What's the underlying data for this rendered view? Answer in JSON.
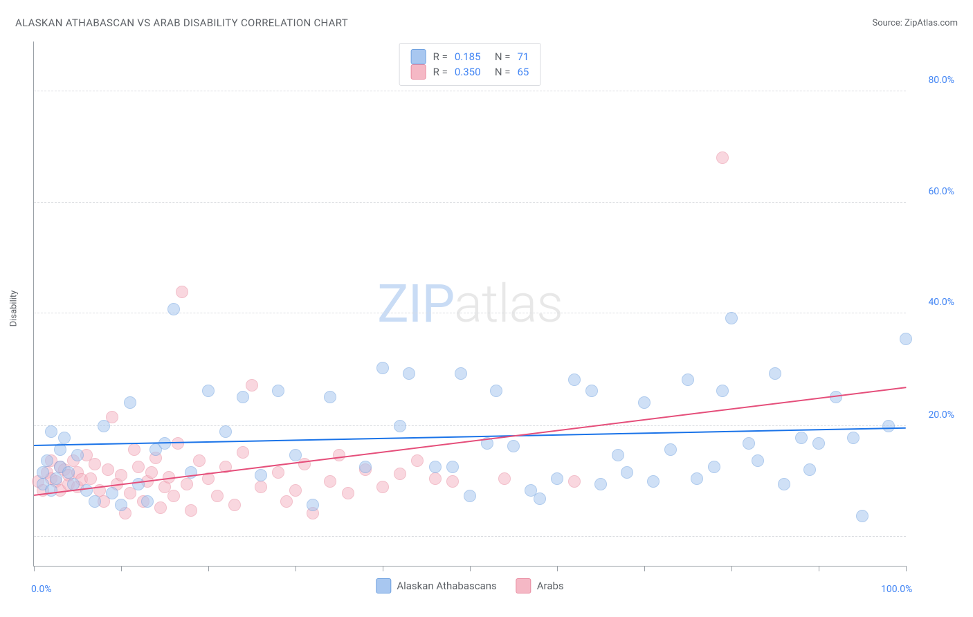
{
  "title": "ALASKAN ATHABASCAN VS ARAB DISABILITY CORRELATION CHART",
  "source_label": "Source: ZipAtlas.com",
  "y_axis_label": "Disability",
  "watermark": {
    "left": "ZIP",
    "right": "atlas"
  },
  "chart": {
    "type": "scatter",
    "xlim": [
      0,
      100
    ],
    "ylim": [
      0,
      90
    ],
    "x_tick_positions": [
      0,
      10,
      20,
      30,
      40,
      50,
      60,
      70,
      80,
      90,
      100
    ],
    "x_tick_labels": {
      "0": "0.0%",
      "100": "100.0%"
    },
    "y_grid_positions": [
      5,
      24,
      43.3,
      62.3,
      81.5
    ],
    "y_tick_labels": [
      {
        "pos": 24,
        "text": "20.0%"
      },
      {
        "pos": 43.3,
        "text": "40.0%"
      },
      {
        "pos": 62.3,
        "text": "60.0%"
      },
      {
        "pos": 81.5,
        "text": "80.0%"
      }
    ],
    "grid_color": "#dadce0",
    "axis_color": "#9aa0a6",
    "background_color": "#ffffff",
    "point_radius": 8,
    "point_opacity": 0.55,
    "series": [
      {
        "name": "Alaskan Athabascans",
        "fill_color": "#a8c7f0",
        "stroke_color": "#6fa1e0",
        "trend_color": "#1a73e8",
        "stats": {
          "r_label": "R =",
          "r_value": "0.185",
          "n_label": "N =",
          "n_value": "71"
        },
        "trend": {
          "x1": 0,
          "y1": 20.5,
          "x2": 100,
          "y2": 23.5
        },
        "points": [
          [
            1,
            16
          ],
          [
            1,
            14
          ],
          [
            1.5,
            18
          ],
          [
            2,
            23
          ],
          [
            2,
            13
          ],
          [
            2.5,
            15
          ],
          [
            3,
            20
          ],
          [
            3,
            17
          ],
          [
            3.5,
            22
          ],
          [
            4,
            16
          ],
          [
            4.5,
            14
          ],
          [
            5,
            19
          ],
          [
            6,
            13
          ],
          [
            7,
            11
          ],
          [
            8,
            24
          ],
          [
            9,
            12.5
          ],
          [
            10,
            10.5
          ],
          [
            11,
            28
          ],
          [
            12,
            14
          ],
          [
            13,
            11
          ],
          [
            14,
            20
          ],
          [
            15,
            21
          ],
          [
            16,
            44
          ],
          [
            18,
            16
          ],
          [
            20,
            30
          ],
          [
            22,
            23
          ],
          [
            24,
            29
          ],
          [
            26,
            15.5
          ],
          [
            28,
            30
          ],
          [
            30,
            19
          ],
          [
            32,
            10.5
          ],
          [
            34,
            29
          ],
          [
            38,
            17
          ],
          [
            40,
            34
          ],
          [
            42,
            24
          ],
          [
            43,
            33
          ],
          [
            46,
            17
          ],
          [
            48,
            17
          ],
          [
            49,
            33
          ],
          [
            50,
            12
          ],
          [
            52,
            21
          ],
          [
            53,
            30
          ],
          [
            55,
            20.5
          ],
          [
            57,
            13
          ],
          [
            58,
            11.5
          ],
          [
            60,
            15
          ],
          [
            62,
            32
          ],
          [
            64,
            30
          ],
          [
            65,
            14
          ],
          [
            67,
            19
          ],
          [
            68,
            16
          ],
          [
            70,
            28
          ],
          [
            71,
            14.5
          ],
          [
            73,
            20
          ],
          [
            75,
            32
          ],
          [
            76,
            15
          ],
          [
            78,
            17
          ],
          [
            79,
            30
          ],
          [
            80,
            42.5
          ],
          [
            82,
            21
          ],
          [
            83,
            18
          ],
          [
            85,
            33
          ],
          [
            86,
            14
          ],
          [
            88,
            22
          ],
          [
            89,
            16.5
          ],
          [
            90,
            21
          ],
          [
            92,
            29
          ],
          [
            94,
            22
          ],
          [
            95,
            8.5
          ],
          [
            98,
            24
          ],
          [
            100,
            39
          ]
        ]
      },
      {
        "name": "Arabs",
        "fill_color": "#f5b8c5",
        "stroke_color": "#e98ba0",
        "trend_color": "#e54e7a",
        "stats": {
          "r_label": "R =",
          "r_value": "0.350",
          "n_label": "N =",
          "n_value": "65"
        },
        "trend": {
          "x1": 0,
          "y1": 12,
          "x2": 100,
          "y2": 30.5
        },
        "points": [
          [
            0.5,
            14.5
          ],
          [
            1,
            13
          ],
          [
            1.5,
            16
          ],
          [
            2,
            15
          ],
          [
            2,
            18
          ],
          [
            2.5,
            14.5
          ],
          [
            3,
            17
          ],
          [
            3,
            13
          ],
          [
            3.5,
            16.5
          ],
          [
            4,
            14
          ],
          [
            4,
            15.5
          ],
          [
            4.5,
            18
          ],
          [
            5,
            13.5
          ],
          [
            5,
            16
          ],
          [
            5.5,
            14.8
          ],
          [
            6,
            19
          ],
          [
            6.5,
            15
          ],
          [
            7,
            17.5
          ],
          [
            7.5,
            13
          ],
          [
            8,
            11
          ],
          [
            8.5,
            16.5
          ],
          [
            9,
            25.5
          ],
          [
            9.5,
            14
          ],
          [
            10,
            15.5
          ],
          [
            10.5,
            9
          ],
          [
            11,
            12.5
          ],
          [
            11.5,
            20
          ],
          [
            12,
            17
          ],
          [
            12.5,
            11
          ],
          [
            13,
            14.5
          ],
          [
            13.5,
            16
          ],
          [
            14,
            18.5
          ],
          [
            14.5,
            10
          ],
          [
            15,
            13.5
          ],
          [
            15.5,
            15.2
          ],
          [
            16,
            12
          ],
          [
            16.5,
            21
          ],
          [
            17,
            47
          ],
          [
            17.5,
            14
          ],
          [
            18,
            9.5
          ],
          [
            19,
            18
          ],
          [
            20,
            15
          ],
          [
            21,
            12
          ],
          [
            22,
            17
          ],
          [
            23,
            10.5
          ],
          [
            24,
            19.5
          ],
          [
            25,
            31
          ],
          [
            26,
            13.5
          ],
          [
            28,
            16
          ],
          [
            29,
            11
          ],
          [
            30,
            13
          ],
          [
            31,
            17.5
          ],
          [
            32,
            9
          ],
          [
            34,
            14.5
          ],
          [
            35,
            19
          ],
          [
            36,
            12.5
          ],
          [
            38,
            16.5
          ],
          [
            40,
            13.5
          ],
          [
            42,
            15.8
          ],
          [
            44,
            18
          ],
          [
            46,
            15
          ],
          [
            48,
            14.5
          ],
          [
            54,
            15
          ],
          [
            62,
            14.5
          ],
          [
            79,
            70
          ]
        ]
      }
    ]
  }
}
